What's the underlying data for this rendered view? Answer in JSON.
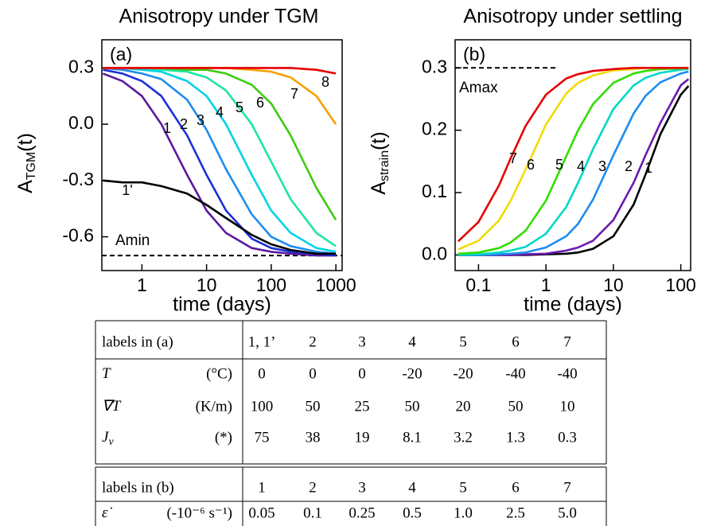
{
  "chart_data": [
    {
      "type": "line",
      "title": "Anisotropy under TGM",
      "panel_label": "(a)",
      "xlabel": "time (days)",
      "ylabel": {
        "base": "A",
        "sub": "TGM",
        "tail": "(t)"
      },
      "xscale": "log",
      "x": [
        0.25,
        0.5,
        1,
        2,
        5,
        10,
        20,
        50,
        100,
        200,
        500,
        1000
      ],
      "series": [
        {
          "name": "1",
          "color": "#5a1a9e",
          "values": [
            0.27,
            0.23,
            0.15,
            0.0,
            -0.27,
            -0.46,
            -0.58,
            -0.66,
            -0.68,
            -0.69,
            -0.7,
            -0.7
          ]
        },
        {
          "name": "2",
          "color": "#1c2fd6",
          "values": [
            0.29,
            0.27,
            0.23,
            0.15,
            -0.06,
            -0.27,
            -0.46,
            -0.61,
            -0.66,
            -0.68,
            -0.69,
            -0.7
          ]
        },
        {
          "name": "3",
          "color": "#1e8cf0",
          "values": [
            0.3,
            0.29,
            0.27,
            0.24,
            0.13,
            -0.03,
            -0.24,
            -0.48,
            -0.6,
            -0.65,
            -0.68,
            -0.69
          ]
        },
        {
          "name": "4",
          "color": "#00d2e6",
          "values": [
            0.3,
            0.3,
            0.29,
            0.28,
            0.23,
            0.15,
            0.0,
            -0.27,
            -0.46,
            -0.58,
            -0.66,
            -0.68
          ]
        },
        {
          "name": "5",
          "color": "#1ee6a0",
          "values": [
            0.3,
            0.3,
            0.3,
            0.29,
            0.28,
            0.25,
            0.18,
            0.0,
            -0.2,
            -0.4,
            -0.58,
            -0.65
          ]
        },
        {
          "name": "6",
          "color": "#3ccc10",
          "values": [
            0.3,
            0.3,
            0.3,
            0.3,
            0.29,
            0.29,
            0.27,
            0.21,
            0.11,
            -0.06,
            -0.34,
            -0.51
          ]
        },
        {
          "name": "7",
          "color": "#f5a000",
          "values": [
            0.3,
            0.3,
            0.3,
            0.3,
            0.3,
            0.3,
            0.3,
            0.29,
            0.28,
            0.25,
            0.15,
            0.0
          ]
        },
        {
          "name": "8",
          "color": "#e60000",
          "values": [
            0.3,
            0.3,
            0.3,
            0.3,
            0.3,
            0.3,
            0.3,
            0.3,
            0.3,
            0.3,
            0.29,
            0.27
          ]
        },
        {
          "name": "1'",
          "color": "#000000",
          "values": [
            -0.3,
            -0.31,
            -0.31,
            -0.33,
            -0.37,
            -0.43,
            -0.5,
            -0.59,
            -0.64,
            -0.67,
            -0.69,
            -0.69
          ]
        }
      ],
      "xlim": [
        0.24,
        1250
      ],
      "ylim": [
        -0.78,
        0.45
      ],
      "xticks": [
        1,
        10,
        100,
        1000
      ],
      "yticks": [
        0.3,
        {
          "value": 0,
          "label": "0.0"
        },
        -0.3,
        -0.6
      ],
      "reference_line": {
        "value": -0.7,
        "label": "Amin"
      }
    },
    {
      "type": "line",
      "title": "Anisotropy under settling",
      "panel_label": "(b)",
      "xlabel": "time (days)",
      "ylabel": {
        "base": "A",
        "sub": "strain",
        "tail": "(t)"
      },
      "xscale": "log",
      "x": [
        0.05,
        0.1,
        0.2,
        0.3,
        0.5,
        1,
        2,
        3,
        5,
        10,
        20,
        30,
        50,
        100,
        130
      ],
      "series": [
        {
          "name": "1",
          "color": "#000000",
          "values": [
            0,
            0,
            0,
            0,
            0,
            0.001,
            0.002,
            0.004,
            0.01,
            0.03,
            0.081,
            0.129,
            0.194,
            0.257,
            0.271
          ]
        },
        {
          "name": "2",
          "color": "#6a1ab0",
          "values": [
            0,
            0,
            0,
            0,
            0.001,
            0.002,
            0.007,
            0.012,
            0.023,
            0.056,
            0.116,
            0.16,
            0.212,
            0.272,
            0.282
          ]
        },
        {
          "name": "3",
          "color": "#1e8cf0",
          "values": [
            0,
            0,
            0.001,
            0.002,
            0.004,
            0.012,
            0.03,
            0.05,
            0.089,
            0.16,
            0.227,
            0.255,
            0.277,
            0.291,
            0.294
          ]
        },
        {
          "name": "4",
          "color": "#00d8c8",
          "values": [
            0,
            0.001,
            0.004,
            0.007,
            0.013,
            0.034,
            0.077,
            0.116,
            0.17,
            0.234,
            0.272,
            0.284,
            0.292,
            0.297,
            0.298
          ]
        },
        {
          "name": "5",
          "color": "#33dd00",
          "values": [
            0.002,
            0.004,
            0.011,
            0.02,
            0.039,
            0.087,
            0.158,
            0.2,
            0.242,
            0.276,
            0.291,
            0.295,
            0.298,
            0.299,
            0.299
          ]
        },
        {
          "name": "6",
          "color": "#f0dc00",
          "values": [
            0.009,
            0.023,
            0.055,
            0.087,
            0.137,
            0.209,
            0.259,
            0.276,
            0.288,
            0.296,
            0.298,
            0.3,
            0.3,
            0.3,
            0.3
          ]
        },
        {
          "name": "7",
          "color": "#e60000",
          "values": [
            0.022,
            0.053,
            0.111,
            0.155,
            0.207,
            0.257,
            0.283,
            0.29,
            0.295,
            0.298,
            0.3,
            0.3,
            0.3,
            0.3,
            0.3
          ]
        }
      ],
      "xlim": [
        0.045,
        140
      ],
      "ylim": [
        -0.025,
        0.345
      ],
      "xticks": [
        0.1,
        1,
        10,
        100
      ],
      "yticks": [
        {
          "value": 0,
          "label": "0.0"
        },
        0.1,
        0.2,
        0.3
      ],
      "reference_line": {
        "value": 0.3,
        "label": "Amax"
      }
    }
  ],
  "tables": [
    {
      "header": [
        "labels in (a)",
        "1, 1’",
        "2",
        "3",
        "4",
        "5",
        "6",
        "7"
      ],
      "rows": [
        {
          "symbol": "T",
          "unit": "(°C)",
          "cells": [
            "0",
            "0",
            "0",
            "-20",
            "-20",
            "-40",
            "-40"
          ]
        },
        {
          "symbol": "∇T",
          "unit": "(K/m)",
          "cells": [
            "100",
            "50",
            "25",
            "50",
            "20",
            "50",
            "10"
          ]
        },
        {
          "symbol": "J",
          "symbol_sub": "v",
          "unit": "(*)",
          "cells": [
            "75",
            "38",
            "19",
            "8.1",
            "3.2",
            "1.3",
            "0.3"
          ]
        }
      ]
    },
    {
      "header": [
        "labels in (b)",
        "1",
        "2",
        "3",
        "4",
        "5",
        "6",
        "7"
      ],
      "rows": [
        {
          "symbol": "ε̇",
          "unit": "(-10⁻⁶ s⁻¹)",
          "cells": [
            "0.05",
            "0.1",
            "0.25",
            "0.5",
            "1.0",
            "2.5",
            "5.0"
          ]
        }
      ]
    }
  ]
}
